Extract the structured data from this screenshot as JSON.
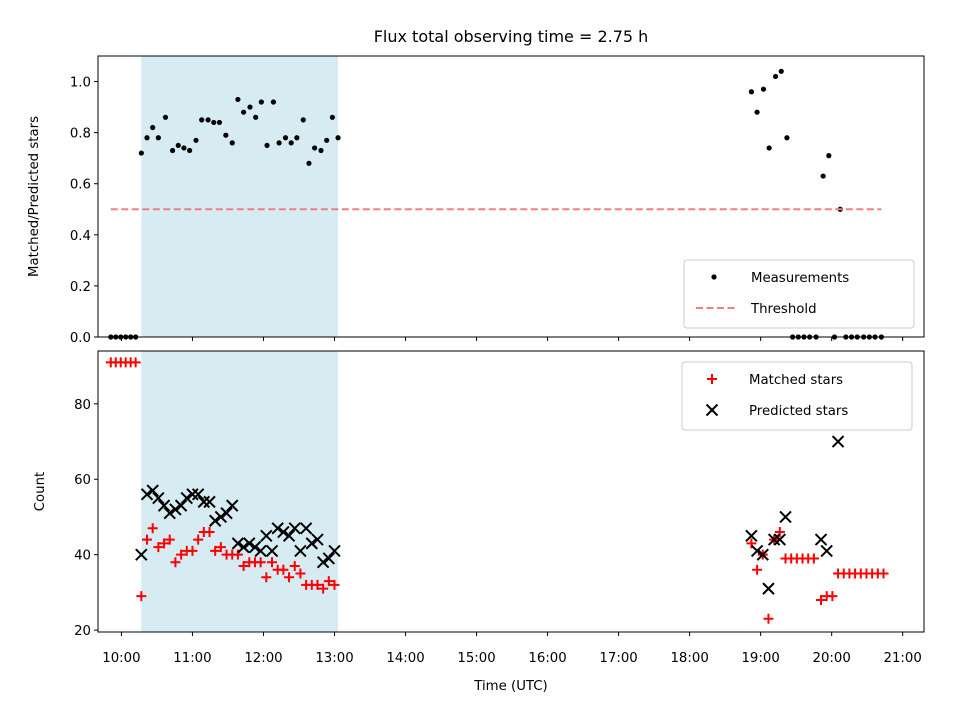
{
  "chart_data": {
    "type": "scatter",
    "title": "Flux total observing time = 2.75 h",
    "xlabel": "Time (UTC)",
    "xlim": [
      9.67,
      21.3
    ],
    "xticks": [
      "10:00",
      "11:00",
      "12:00",
      "13:00",
      "14:00",
      "15:00",
      "16:00",
      "17:00",
      "18:00",
      "19:00",
      "20:00",
      "21:00"
    ],
    "xtick_values": [
      10,
      11,
      12,
      13,
      14,
      15,
      16,
      17,
      18,
      19,
      20,
      21
    ],
    "shaded_span": {
      "x0": 10.28,
      "x1": 13.05,
      "color": "#add8e6"
    },
    "panels": [
      {
        "ylabel": "Matched/Predicted stars",
        "ylim": [
          0,
          1.1
        ],
        "yticks": [
          "0.0",
          "0.2",
          "0.4",
          "0.6",
          "0.8",
          "1.0"
        ],
        "ytick_values": [
          0,
          0.2,
          0.4,
          0.6,
          0.8,
          1.0
        ],
        "legend_position": "lower-right",
        "series": [
          {
            "name": "Measurements",
            "marker": "dot",
            "color": "#000000",
            "points": [
              [
                9.85,
                0
              ],
              [
                9.92,
                0
              ],
              [
                9.99,
                0
              ],
              [
                10.06,
                0
              ],
              [
                10.13,
                0
              ],
              [
                10.2,
                0
              ],
              [
                10.28,
                0.72
              ],
              [
                10.36,
                0.78
              ],
              [
                10.44,
                0.82
              ],
              [
                10.52,
                0.78
              ],
              [
                10.62,
                0.86
              ],
              [
                10.72,
                0.73
              ],
              [
                10.8,
                0.75
              ],
              [
                10.88,
                0.74
              ],
              [
                10.96,
                0.73
              ],
              [
                11.05,
                0.77
              ],
              [
                11.13,
                0.85
              ],
              [
                11.22,
                0.85
              ],
              [
                11.3,
                0.84
              ],
              [
                11.38,
                0.84
              ],
              [
                11.47,
                0.79
              ],
              [
                11.56,
                0.76
              ],
              [
                11.64,
                0.93
              ],
              [
                11.72,
                0.88
              ],
              [
                11.81,
                0.9
              ],
              [
                11.89,
                0.86
              ],
              [
                11.97,
                0.92
              ],
              [
                12.05,
                0.75
              ],
              [
                12.14,
                0.92
              ],
              [
                12.22,
                0.76
              ],
              [
                12.31,
                0.78
              ],
              [
                12.39,
                0.76
              ],
              [
                12.47,
                0.78
              ],
              [
                12.56,
                0.85
              ],
              [
                12.64,
                0.68
              ],
              [
                12.72,
                0.74
              ],
              [
                12.81,
                0.73
              ],
              [
                12.89,
                0.77
              ],
              [
                12.97,
                0.86
              ],
              [
                13.05,
                0.78
              ],
              [
                18.87,
                0.96
              ],
              [
                18.95,
                0.88
              ],
              [
                19.04,
                0.97
              ],
              [
                19.12,
                0.74
              ],
              [
                19.21,
                1.02
              ],
              [
                19.29,
                1.04
              ],
              [
                19.37,
                0.78
              ],
              [
                19.45,
                0
              ],
              [
                19.53,
                0
              ],
              [
                19.61,
                0
              ],
              [
                19.69,
                0
              ],
              [
                19.78,
                0
              ],
              [
                19.88,
                0.63
              ],
              [
                19.96,
                0.71
              ],
              [
                20.04,
                0
              ],
              [
                20.12,
                0.5
              ],
              [
                20.2,
                0
              ],
              [
                20.28,
                0
              ],
              [
                20.36,
                0
              ],
              [
                20.45,
                0
              ],
              [
                20.53,
                0
              ],
              [
                20.61,
                0
              ],
              [
                20.7,
                0
              ]
            ]
          },
          {
            "name": "Threshold",
            "marker": "dashed-line",
            "color": "#f08080",
            "points": [
              [
                9.85,
                0.5
              ],
              [
                20.7,
                0.5
              ]
            ]
          }
        ]
      },
      {
        "ylabel": "Count",
        "ylim": [
          19.5,
          94
        ],
        "yticks": [
          "20",
          "40",
          "60",
          "80"
        ],
        "ytick_values": [
          20,
          40,
          60,
          80
        ],
        "legend_position": "upper-right",
        "series": [
          {
            "name": "Matched stars",
            "marker": "plus",
            "color": "#ff0000",
            "points": [
              [
                9.85,
                91
              ],
              [
                9.92,
                91
              ],
              [
                9.99,
                91
              ],
              [
                10.06,
                91
              ],
              [
                10.13,
                91
              ],
              [
                10.2,
                91
              ],
              [
                10.28,
                29
              ],
              [
                10.36,
                44
              ],
              [
                10.44,
                47
              ],
              [
                10.52,
                42
              ],
              [
                10.6,
                43
              ],
              [
                10.68,
                44
              ],
              [
                10.76,
                38
              ],
              [
                10.84,
                40
              ],
              [
                10.92,
                41
              ],
              [
                11.0,
                41
              ],
              [
                11.08,
                44
              ],
              [
                11.16,
                46
              ],
              [
                11.24,
                46
              ],
              [
                11.32,
                41
              ],
              [
                11.4,
                42
              ],
              [
                11.48,
                40
              ],
              [
                11.56,
                40
              ],
              [
                11.64,
                40
              ],
              [
                11.72,
                37
              ],
              [
                11.8,
                38
              ],
              [
                11.88,
                38
              ],
              [
                11.96,
                38
              ],
              [
                12.04,
                34
              ],
              [
                12.12,
                38
              ],
              [
                12.2,
                36
              ],
              [
                12.28,
                36
              ],
              [
                12.36,
                34
              ],
              [
                12.44,
                37
              ],
              [
                12.52,
                35
              ],
              [
                12.6,
                32
              ],
              [
                12.68,
                32
              ],
              [
                12.76,
                32
              ],
              [
                12.84,
                31
              ],
              [
                12.92,
                33
              ],
              [
                13.0,
                32
              ],
              [
                18.87,
                43
              ],
              [
                18.95,
                36
              ],
              [
                19.03,
                40
              ],
              [
                19.11,
                23
              ],
              [
                19.19,
                44
              ],
              [
                19.27,
                46
              ],
              [
                19.35,
                39
              ],
              [
                19.43,
                39
              ],
              [
                19.51,
                39
              ],
              [
                19.59,
                39
              ],
              [
                19.67,
                39
              ],
              [
                19.75,
                39
              ],
              [
                19.85,
                28
              ],
              [
                19.93,
                29
              ],
              [
                20.01,
                29
              ],
              [
                20.09,
                35
              ],
              [
                20.17,
                35
              ],
              [
                20.25,
                35
              ],
              [
                20.33,
                35
              ],
              [
                20.41,
                35
              ],
              [
                20.49,
                35
              ],
              [
                20.57,
                35
              ],
              [
                20.65,
                35
              ],
              [
                20.73,
                35
              ]
            ]
          },
          {
            "name": "Predicted stars",
            "marker": "x",
            "color": "#000000",
            "points": [
              [
                10.28,
                40
              ],
              [
                10.36,
                56
              ],
              [
                10.44,
                57
              ],
              [
                10.52,
                55
              ],
              [
                10.6,
                53
              ],
              [
                10.68,
                51
              ],
              [
                10.76,
                52
              ],
              [
                10.84,
                53
              ],
              [
                10.92,
                55
              ],
              [
                11.0,
                56
              ],
              [
                11.08,
                56
              ],
              [
                11.16,
                54
              ],
              [
                11.24,
                54
              ],
              [
                11.32,
                49
              ],
              [
                11.4,
                50
              ],
              [
                11.48,
                51
              ],
              [
                11.56,
                53
              ],
              [
                11.64,
                43
              ],
              [
                11.72,
                42
              ],
              [
                11.8,
                43
              ],
              [
                11.88,
                42
              ],
              [
                11.96,
                41
              ],
              [
                12.04,
                45
              ],
              [
                12.12,
                41
              ],
              [
                12.2,
                47
              ],
              [
                12.28,
                46
              ],
              [
                12.36,
                45
              ],
              [
                12.44,
                47
              ],
              [
                12.52,
                41
              ],
              [
                12.6,
                47
              ],
              [
                12.68,
                43
              ],
              [
                12.76,
                44
              ],
              [
                12.84,
                38
              ],
              [
                12.92,
                39
              ],
              [
                13.0,
                41
              ],
              [
                18.87,
                45
              ],
              [
                18.95,
                41
              ],
              [
                19.03,
                40
              ],
              [
                19.11,
                31
              ],
              [
                19.19,
                44
              ],
              [
                19.27,
                44
              ],
              [
                19.35,
                50
              ],
              [
                19.85,
                44
              ],
              [
                19.93,
                41
              ],
              [
                20.09,
                70
              ]
            ]
          }
        ]
      }
    ]
  }
}
